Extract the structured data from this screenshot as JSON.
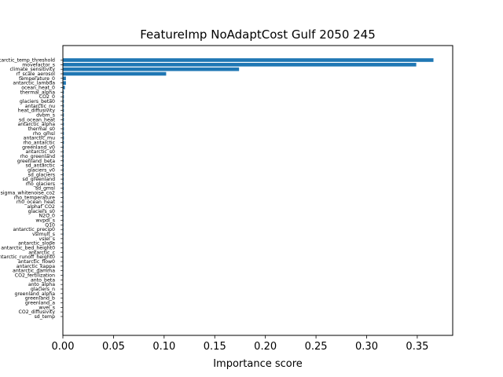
{
  "chart_data": {
    "type": "bar",
    "orientation": "horizontal",
    "title": "FeatureImp NoAdaptCost Gulf 2050 245",
    "xlabel": "Importance score",
    "ylabel": "",
    "xlim": [
      0,
      0.385
    ],
    "xticks": [
      "0.00",
      "0.05",
      "0.10",
      "0.15",
      "0.20",
      "0.25",
      "0.30",
      "0.35"
    ],
    "grid": false,
    "bar_color": "#1f77b4",
    "categories": [
      "antarctic_temp_threshold",
      "movefactor_s",
      "climate_sensitivity",
      "rf_scale_aerosol",
      "temperature_0",
      "antarctic_lambda",
      "ocean_heat_0",
      "thermal_alpha",
      "CO2_0",
      "glaciers_beta0",
      "antarctic_nu",
      "heat_diffusivity",
      "dvbm_s",
      "sd_ocean_heat",
      "antarctic_alpha",
      "thermal_s0",
      "rho_gmsl",
      "antarctic_mu",
      "rho_antarctic",
      "greenland_v0",
      "antarctic_s0",
      "rho_greenland",
      "greenland_beta",
      "sd_antarctic",
      "glaciers_v0",
      "sd_glaciers",
      "sd_greenland",
      "rho_glaciers",
      "sd_gmsl",
      "sigma_whitenoise_co2",
      "rho_temperature",
      "rh0_ocean_heat",
      "alphaf_CO2",
      "glaciers_s0",
      "N2O_0",
      "wvpdl_s",
      "Q10",
      "antarctic_precip0",
      "vslmult_s",
      "vslel_s",
      "antarctic_slope",
      "antarctic_bed_height0",
      "antarctic_c",
      "antarctic_runoff_height0",
      "antarctic_flow0",
      "antarctic_kappa",
      "antarctic_gamma",
      "CO2_fertilization",
      "anto_beta",
      "anto_alpha",
      "glaciers_n",
      "greenland_alpha",
      "greenland_b",
      "greenland_a",
      "wvel_s",
      "CO2_diffusivity",
      "sd_temp"
    ],
    "values": [
      0.366,
      0.349,
      0.174,
      0.102,
      0.003,
      0.003,
      0.002,
      0.001,
      0.001,
      0.001,
      0.001,
      0.001,
      0.001,
      0.001,
      0.001,
      0.001,
      0.001,
      0.001,
      0.001,
      0.0008,
      0.0008,
      0.0008,
      0.0008,
      0.0008,
      0.0008,
      0.0008,
      0.0008,
      0.0008,
      0.0008,
      0.0006,
      0.0006,
      0.0006,
      0.0006,
      0.0006,
      0.0006,
      0.0006,
      0.0006,
      0.0006,
      0.0006,
      0.0005,
      0.0005,
      0.0005,
      0.0005,
      0.0005,
      0.0005,
      0.0005,
      0.0005,
      0.0005,
      0.0004,
      0.0004,
      0.0004,
      0.0004,
      0.0004,
      0.0004,
      0.0004,
      0.0003,
      0.0003
    ]
  }
}
